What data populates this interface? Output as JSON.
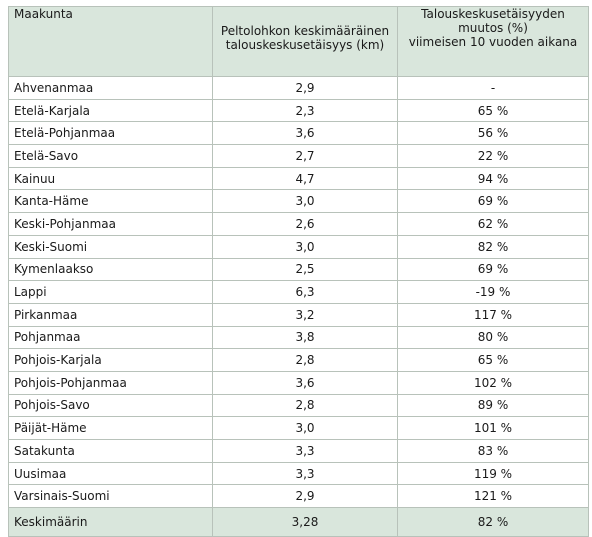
{
  "table": {
    "headers": {
      "region": "Maakunta",
      "distance_line1": "Peltolohkon keskimääräinen",
      "distance_line2": "talouskeskusetäisyys (km)",
      "change_line1": "Talouskeskusetäisyyden",
      "change_line2": "muutos (%)",
      "change_line3": "viimeisen 10 vuoden aikana"
    },
    "rows": [
      {
        "region": "Ahvenanmaa",
        "distance": "2,9",
        "change": "-"
      },
      {
        "region": "Etelä-Karjala",
        "distance": "2,3",
        "change": "65 %"
      },
      {
        "region": "Etelä-Pohjanmaa",
        "distance": "3,6",
        "change": "56 %"
      },
      {
        "region": "Etelä-Savo",
        "distance": "2,7",
        "change": "22 %"
      },
      {
        "region": "Kainuu",
        "distance": "4,7",
        "change": "94 %"
      },
      {
        "region": "Kanta-Häme",
        "distance": "3,0",
        "change": "69 %"
      },
      {
        "region": "Keski-Pohjanmaa",
        "distance": "2,6",
        "change": "62 %"
      },
      {
        "region": "Keski-Suomi",
        "distance": "3,0",
        "change": "82 %"
      },
      {
        "region": "Kymenlaakso",
        "distance": "2,5",
        "change": "69 %"
      },
      {
        "region": "Lappi",
        "distance": "6,3",
        "change": "-19 %"
      },
      {
        "region": "Pirkanmaa",
        "distance": "3,2",
        "change": "117 %"
      },
      {
        "region": "Pohjanmaa",
        "distance": "3,8",
        "change": "80 %"
      },
      {
        "region": "Pohjois-Karjala",
        "distance": "2,8",
        "change": "65 %"
      },
      {
        "region": "Pohjois-Pohjanmaa",
        "distance": "3,6",
        "change": "102 %"
      },
      {
        "region": "Pohjois-Savo",
        "distance": "2,8",
        "change": "89 %"
      },
      {
        "region": "Päijät-Häme",
        "distance": "3,0",
        "change": "101 %"
      },
      {
        "region": "Satakunta",
        "distance": "3,3",
        "change": "83 %"
      },
      {
        "region": "Uusimaa",
        "distance": "3,3",
        "change": "119 %"
      },
      {
        "region": "Varsinais-Suomi",
        "distance": "2,9",
        "change": "121 %"
      }
    ],
    "average": {
      "region": "Keskimäärin",
      "distance": "3,28",
      "change": "82 %"
    }
  },
  "colors": {
    "header_background": "#d9e6dc",
    "border": "#b8c2ba"
  }
}
